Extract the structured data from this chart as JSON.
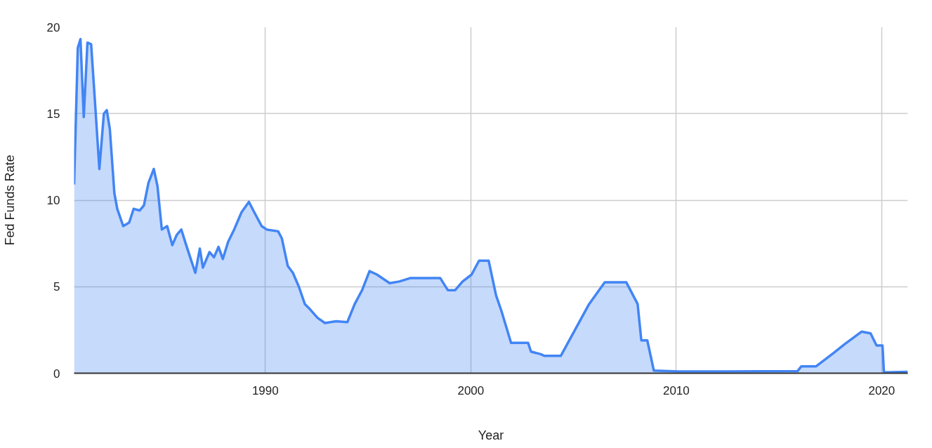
{
  "chart_data": {
    "type": "area",
    "xlabel": "Year",
    "ylabel": "Fed Funds Rate",
    "x": [
      1980.69,
      1980.87,
      1981.0,
      1981.16,
      1981.34,
      1981.52,
      1981.7,
      1981.92,
      1982.14,
      1982.28,
      1982.43,
      1982.65,
      1982.79,
      1983.08,
      1983.37,
      1983.59,
      1983.88,
      1984.09,
      1984.31,
      1984.57,
      1984.75,
      1984.96,
      1985.22,
      1985.47,
      1985.69,
      1985.91,
      1986.12,
      1986.34,
      1986.59,
      1986.81,
      1986.96,
      1987.28,
      1987.5,
      1987.72,
      1987.93,
      1988.19,
      1988.48,
      1988.84,
      1989.2,
      1989.46,
      1989.82,
      1990.07,
      1990.62,
      1990.8,
      1991.09,
      1991.34,
      1991.63,
      1991.92,
      1992.17,
      1992.54,
      1992.9,
      1993.44,
      1993.99,
      1994.35,
      1994.71,
      1995.07,
      1995.43,
      1996.05,
      1996.52,
      1997.07,
      1998.51,
      1998.88,
      1999.24,
      1999.6,
      2000.04,
      2000.4,
      2000.87,
      2001.23,
      2001.49,
      2001.96,
      2002.79,
      2002.93,
      2003.4,
      2003.59,
      2004.38,
      2005.76,
      2006.52,
      2007.57,
      2008.12,
      2008.3,
      2008.59,
      2008.91,
      2010.11,
      2012.28,
      2015.9,
      2016.09,
      2016.81,
      2017.64,
      2018.22,
      2019.02,
      2019.46,
      2019.75,
      2020.04,
      2020.11,
      2021.27
    ],
    "series": [
      {
        "color": "#4285f4",
        "values": [
          10.9,
          18.8,
          19.3,
          14.8,
          19.1,
          19.0,
          15.8,
          11.8,
          15.0,
          15.2,
          14.1,
          10.4,
          9.5,
          8.5,
          8.7,
          9.5,
          9.4,
          9.7,
          11.0,
          11.8,
          10.8,
          8.3,
          8.5,
          7.4,
          8.0,
          8.3,
          7.5,
          6.7,
          5.8,
          7.2,
          6.1,
          7.0,
          6.7,
          7.3,
          6.6,
          7.6,
          8.3,
          9.3,
          9.9,
          9.3,
          8.5,
          8.3,
          8.2,
          7.8,
          6.2,
          5.8,
          5.0,
          4.0,
          3.7,
          3.2,
          2.9,
          3.0,
          2.95,
          4.0,
          4.8,
          5.9,
          5.7,
          5.2,
          5.3,
          5.5,
          5.5,
          4.8,
          4.8,
          5.3,
          5.7,
          6.5,
          6.5,
          4.5,
          3.6,
          1.75,
          1.75,
          1.25,
          1.1,
          1.0,
          1.0,
          4.0,
          5.25,
          5.25,
          4.0,
          1.9,
          1.9,
          0.15,
          0.1,
          0.1,
          0.12,
          0.4,
          0.4,
          1.15,
          1.7,
          2.4,
          2.3,
          1.6,
          1.6,
          0.05,
          0.08
        ]
      }
    ],
    "xlim": [
      1980.69,
      2021.27
    ],
    "ylim": [
      0,
      20
    ],
    "xticks": [
      1990,
      2000,
      2010,
      2020
    ],
    "yticks": [
      0,
      5,
      10,
      15,
      20
    ],
    "grid": true
  }
}
